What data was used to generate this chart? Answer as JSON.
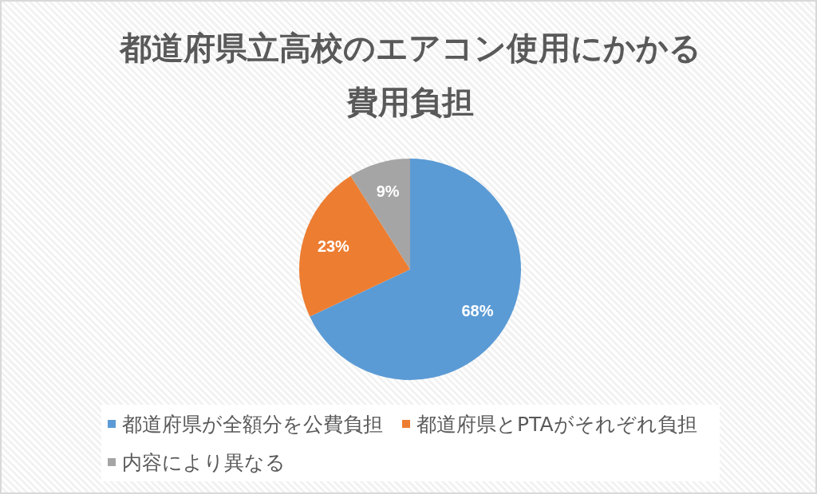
{
  "chart_data": {
    "type": "pie",
    "title": "都道府県立高校のエアコン使用にかかる費用負担",
    "categories": [
      "都道府県が全額分を公費負担",
      "都道府県とPTAがそれぞれ負担",
      "内容により異なる"
    ],
    "values": [
      68,
      23,
      9
    ],
    "colors": [
      "#5b9bd5",
      "#ed7d31",
      "#a5a5a5"
    ],
    "value_labels": [
      "68%",
      "23%",
      "9%"
    ],
    "legend": "bottom"
  }
}
